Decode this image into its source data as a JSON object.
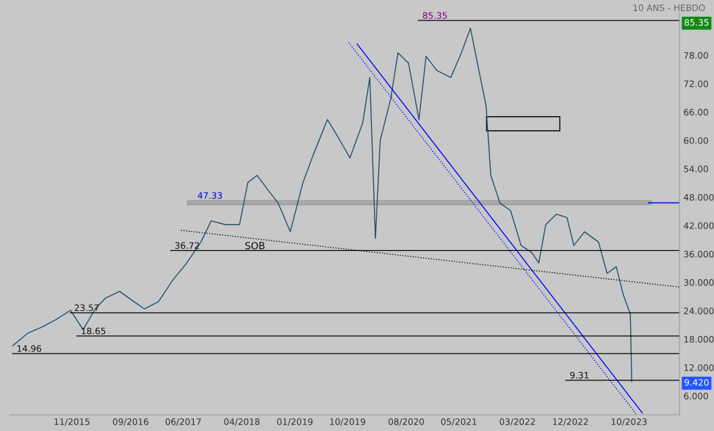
{
  "chart_data": {
    "type": "line",
    "annotations": [
      "10 ANS - HEBDO",
      "SOB",
      "85.35",
      "9.420"
    ],
    "series": [
      {
        "color": "#1f4f66",
        "x": [
          "2014-12-29",
          "2015-03-19",
          "2015-06-01",
          "2015-08-13",
          "2015-10-25",
          "2015-12-29",
          "2016-03-01",
          "2016-04-24",
          "2016-07-06",
          "2016-09-18",
          "2016-11-11",
          "2017-01-23",
          "2017-04-06",
          "2017-06-19",
          "2017-08-31",
          "2017-10-24",
          "2018-01-06",
          "2018-03-20",
          "2018-05-02",
          "2018-06-19",
          "2018-08-13",
          "2018-10-07",
          "2018-12-08",
          "2019-02-12",
          "2019-04-07",
          "2019-06-19",
          "2019-08-13",
          "2019-10-14",
          "2019-12-19",
          "2020-01-25",
          "2020-02-23",
          "2020-03-19",
          "2020-05-13",
          "2020-06-19",
          "2020-08-13",
          "2020-10-06",
          "2020-11-12",
          "2021-01-06",
          "2021-03-20",
          "2021-05-14",
          "2021-06-30",
          "2021-08-13",
          "2021-09-19",
          "2021-10-14",
          "2021-12-01",
          "2022-01-24",
          "2022-03-20",
          "2022-05-14",
          "2022-06-20",
          "2022-07-26",
          "2022-09-19",
          "2022-11-13",
          "2022-12-19",
          "2023-02-12",
          "2023-04-26",
          "2023-06-09",
          "2023-07-27",
          "2023-09-01",
          "2023-10-08",
          "2023-10-15"
        ],
        "values": [
          16.6,
          19.3,
          20.6,
          22.2,
          24.1,
          20.0,
          24.4,
          26.7,
          28.1,
          25.9,
          24.4,
          25.9,
          30.4,
          34.1,
          38.5,
          43.0,
          42.2,
          42.2,
          51.1,
          52.6,
          49.6,
          46.7,
          40.7,
          51.1,
          57.0,
          64.4,
          60.7,
          56.3,
          63.7,
          73.3,
          39.3,
          60.0,
          68.9,
          78.5,
          76.3,
          64.4,
          77.8,
          74.8,
          73.3,
          78.5,
          83.7,
          74.8,
          67.4,
          52.6,
          46.7,
          45.2,
          37.8,
          36.3,
          34.1,
          42.2,
          44.4,
          43.7,
          37.8,
          40.7,
          38.5,
          31.9,
          33.3,
          27.4,
          23.3,
          9.0
        ]
      },
      {
        "color": "#0000ff",
        "x": [
          "2019-11-20",
          "2023-12-09"
        ],
        "values": [
          80.4,
          2.4
        ]
      },
      {
        "color": "#0000ff",
        "line_style": "dotted",
        "x": [
          "2019-10-07",
          "2023-11-06"
        ],
        "values": [
          80.7,
          2.2
        ]
      },
      {
        "color": "#000000",
        "line_style": "dotted",
        "x": [
          "2017-05-20",
          "2024-06-19"
        ],
        "values": [
          41.0,
          29.0
        ]
      },
      {
        "color": "#0000ff",
        "x": [
          "2024-01-09",
          "2024-06-19"
        ],
        "values": [
          46.8,
          46.8
        ]
      }
    ],
    "bands": [
      {
        "axis": "y",
        "from": 46.4,
        "to": 47.3,
        "label": "47.33",
        "color": "#000000"
      }
    ],
    "ref_lines": [
      {
        "axis": "y",
        "value": 85.35,
        "label": "85.35",
        "color": "#000000"
      },
      {
        "axis": "y",
        "value": 36.72,
        "label": "36.72",
        "color": "#000000"
      },
      {
        "axis": "y",
        "value": 23.57,
        "label": "23.57",
        "color": "#000000"
      },
      {
        "axis": "y",
        "value": 18.65,
        "label": "18.65",
        "color": "#000000"
      },
      {
        "axis": "y",
        "value": 14.96,
        "label": "14.96",
        "color": "#000000"
      },
      {
        "axis": "y",
        "value": 9.31,
        "label": "9.31",
        "color": "#000000"
      }
    ],
    "xlim": [
      "2014-12-14",
      "2024-06-19"
    ],
    "xticks": [
      {
        "value": "2015-11-01",
        "label": "11/2015"
      },
      {
        "value": "2016-09-01",
        "label": "09/2016"
      },
      {
        "value": "2017-06-01",
        "label": "06/2017"
      },
      {
        "value": "2018-04-01",
        "label": "04/2018"
      },
      {
        "value": "2019-01-01",
        "label": "01/2019"
      },
      {
        "value": "2019-10-01",
        "label": "10/2019"
      },
      {
        "value": "2020-08-01",
        "label": "08/2020"
      },
      {
        "value": "2021-05-01",
        "label": "05/2021"
      },
      {
        "value": "2022-03-01",
        "label": "03/2022"
      },
      {
        "value": "2022-12-01",
        "label": "12/2022"
      },
      {
        "value": "2023-10-01",
        "label": "10/2023"
      }
    ],
    "ylim": [
      2.0,
      87.0
    ],
    "yticks": [
      {
        "value": 6,
        "label": "6.000"
      },
      {
        "value": 12,
        "label": "12.000"
      },
      {
        "value": 18,
        "label": "18.000"
      },
      {
        "value": 24,
        "label": "24.000"
      },
      {
        "value": 30,
        "label": "30.000"
      },
      {
        "value": 36,
        "label": "36.000"
      },
      {
        "value": 42,
        "label": "42.000"
      },
      {
        "value": 48,
        "label": "48.000"
      },
      {
        "value": 54,
        "label": "54.00"
      },
      {
        "value": 60,
        "label": "60.00"
      },
      {
        "value": 66,
        "label": "66.00"
      },
      {
        "value": 72,
        "label": "72.00"
      },
      {
        "value": 78,
        "label": "78.00"
      }
    ],
    "grid": false
  }
}
